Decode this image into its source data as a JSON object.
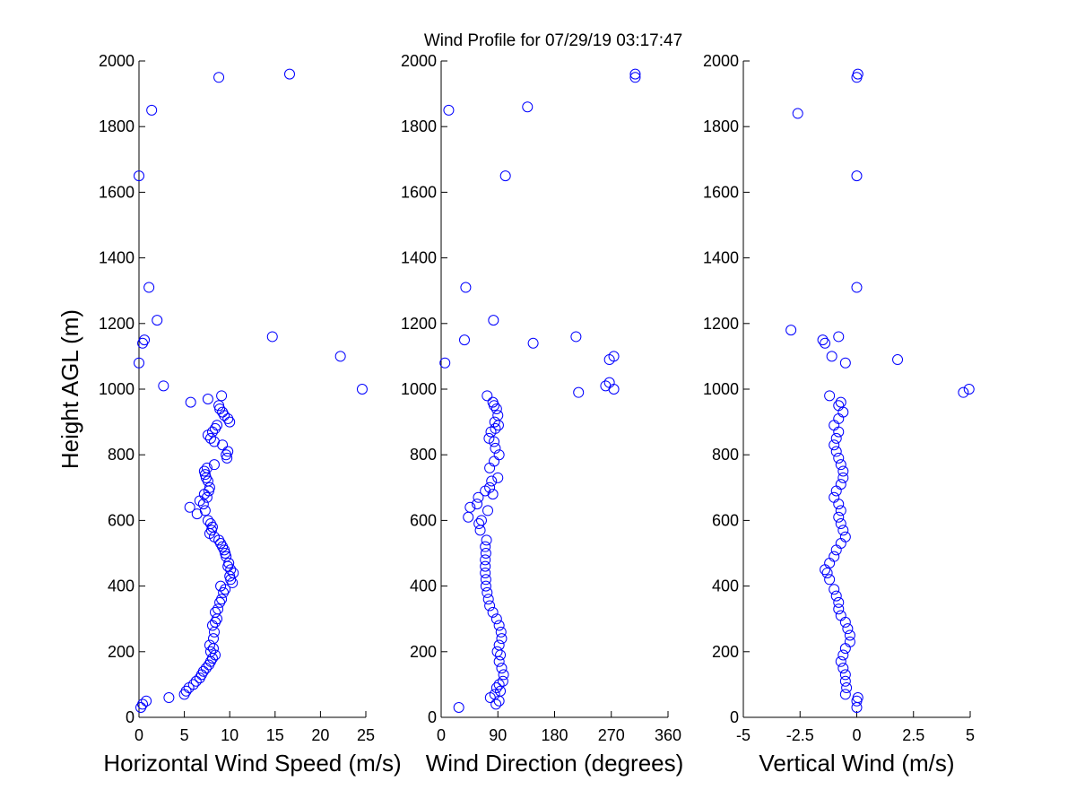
{
  "figure_title": "Wind Profile for  07/29/19 03:17:47",
  "chart_data": [
    {
      "type": "scatter",
      "title": "Wind Profile for  07/29/19 03:17:47",
      "xlabel": "Horizontal Wind Speed (m/s)",
      "ylabel": "Height AGL (m)",
      "xlim": [
        0,
        25
      ],
      "ylim": [
        0,
        2000
      ],
      "xticks": [
        0,
        5,
        10,
        15,
        20,
        25
      ],
      "xtick_labels": [
        "0",
        "5",
        "10",
        "15",
        "20",
        "25"
      ],
      "yticks": [
        0,
        200,
        400,
        600,
        800,
        1000,
        1200,
        1400,
        1600,
        1800,
        2000
      ],
      "ytick_labels": [
        "0",
        "200",
        "400",
        "600",
        "800",
        "1000",
        "1200",
        "1400",
        "1600",
        "1800",
        "2000"
      ],
      "marker_color": "#0000ff",
      "points": [
        [
          0.2,
          30
        ],
        [
          0.4,
          40
        ],
        [
          0.8,
          50
        ],
        [
          3.3,
          60
        ],
        [
          5,
          70
        ],
        [
          5.2,
          80
        ],
        [
          5.5,
          90
        ],
        [
          6,
          100
        ],
        [
          6.3,
          110
        ],
        [
          6.7,
          120
        ],
        [
          6.9,
          130
        ],
        [
          7.1,
          140
        ],
        [
          7.4,
          150
        ],
        [
          7.7,
          160
        ],
        [
          7.9,
          170
        ],
        [
          8.1,
          180
        ],
        [
          8.4,
          190
        ],
        [
          7.9,
          200
        ],
        [
          8.2,
          210
        ],
        [
          7.8,
          220
        ],
        [
          8.2,
          240
        ],
        [
          8.3,
          260
        ],
        [
          8.1,
          280
        ],
        [
          8.4,
          290
        ],
        [
          8.6,
          300
        ],
        [
          8.4,
          320
        ],
        [
          8.7,
          330
        ],
        [
          8.9,
          350
        ],
        [
          9.1,
          360
        ],
        [
          9.3,
          380
        ],
        [
          9.5,
          390
        ],
        [
          9,
          400
        ],
        [
          10.3,
          410
        ],
        [
          10.1,
          420
        ],
        [
          10,
          430
        ],
        [
          10.4,
          440
        ],
        [
          10.1,
          450
        ],
        [
          9.8,
          460
        ],
        [
          9.9,
          470
        ],
        [
          9.6,
          490
        ],
        [
          9.5,
          500
        ],
        [
          9.4,
          510
        ],
        [
          9.2,
          520
        ],
        [
          9,
          530
        ],
        [
          8.8,
          540
        ],
        [
          8.3,
          550
        ],
        [
          7.8,
          560
        ],
        [
          8,
          570
        ],
        [
          8.1,
          580
        ],
        [
          7.9,
          590
        ],
        [
          7.6,
          600
        ],
        [
          6.4,
          620
        ],
        [
          7.3,
          630
        ],
        [
          5.6,
          640
        ],
        [
          7.1,
          650
        ],
        [
          6.7,
          660
        ],
        [
          7.5,
          670
        ],
        [
          7.2,
          680
        ],
        [
          7.7,
          690
        ],
        [
          7.8,
          700
        ],
        [
          7.6,
          720
        ],
        [
          7.4,
          730
        ],
        [
          7.3,
          740
        ],
        [
          7.2,
          750
        ],
        [
          7.5,
          760
        ],
        [
          8.3,
          770
        ],
        [
          9.7,
          790
        ],
        [
          9.6,
          800
        ],
        [
          9.8,
          810
        ],
        [
          9.2,
          830
        ],
        [
          8.3,
          840
        ],
        [
          7.9,
          850
        ],
        [
          7.6,
          860
        ],
        [
          8.1,
          870
        ],
        [
          8.4,
          880
        ],
        [
          8.6,
          890
        ],
        [
          10,
          900
        ],
        [
          9.8,
          910
        ],
        [
          9.4,
          920
        ],
        [
          9.2,
          930
        ],
        [
          8.9,
          940
        ],
        [
          8.8,
          950
        ],
        [
          5.7,
          960
        ],
        [
          7.6,
          970
        ],
        [
          9.1,
          980
        ],
        [
          2.7,
          1010
        ],
        [
          24.6,
          1000
        ],
        [
          0,
          1080
        ],
        [
          22.2,
          1100
        ],
        [
          0.4,
          1140
        ],
        [
          0.6,
          1150
        ],
        [
          14.7,
          1160
        ],
        [
          2,
          1210
        ],
        [
          1.1,
          1310
        ],
        [
          0,
          1650
        ],
        [
          1.4,
          1850
        ],
        [
          8.8,
          1950
        ],
        [
          16.6,
          1960
        ]
      ]
    },
    {
      "type": "scatter",
      "xlabel": "Wind Direction (degrees)",
      "ylabel": "",
      "xlim": [
        0,
        360
      ],
      "ylim": [
        0,
        2000
      ],
      "xticks": [
        0,
        90,
        180,
        270,
        360
      ],
      "xtick_labels": [
        "0",
        "90",
        "180",
        "270",
        "360"
      ],
      "yticks": [
        0,
        200,
        400,
        600,
        800,
        1000,
        1200,
        1400,
        1600,
        1800,
        2000
      ],
      "ytick_labels": [
        "0",
        "200",
        "400",
        "600",
        "800",
        "1000",
        "1200",
        "1400",
        "1600",
        "1800",
        "2000"
      ],
      "marker_color": "#0000ff",
      "points": [
        [
          28,
          30
        ],
        [
          87,
          40
        ],
        [
          92,
          50
        ],
        [
          78,
          60
        ],
        [
          85,
          70
        ],
        [
          94,
          80
        ],
        [
          88,
          90
        ],
        [
          92,
          100
        ],
        [
          98,
          110
        ],
        [
          99,
          130
        ],
        [
          96,
          150
        ],
        [
          92,
          170
        ],
        [
          94,
          190
        ],
        [
          89,
          200
        ],
        [
          92,
          220
        ],
        [
          96,
          240
        ],
        [
          95,
          260
        ],
        [
          92,
          280
        ],
        [
          88,
          300
        ],
        [
          82,
          320
        ],
        [
          77,
          340
        ],
        [
          75,
          360
        ],
        [
          73,
          380
        ],
        [
          71,
          400
        ],
        [
          71,
          420
        ],
        [
          70,
          440
        ],
        [
          70,
          460
        ],
        [
          70,
          480
        ],
        [
          71,
          500
        ],
        [
          70,
          520
        ],
        [
          72,
          540
        ],
        [
          62,
          570
        ],
        [
          60,
          590
        ],
        [
          64,
          600
        ],
        [
          43,
          610
        ],
        [
          46,
          640
        ],
        [
          57,
          650
        ],
        [
          74,
          630
        ],
        [
          59,
          670
        ],
        [
          70,
          690
        ],
        [
          82,
          680
        ],
        [
          77,
          700
        ],
        [
          80,
          720
        ],
        [
          90,
          730
        ],
        [
          77,
          760
        ],
        [
          84,
          780
        ],
        [
          92,
          800
        ],
        [
          86,
          820
        ],
        [
          84,
          840
        ],
        [
          76,
          850
        ],
        [
          79,
          870
        ],
        [
          86,
          880
        ],
        [
          91,
          890
        ],
        [
          85,
          900
        ],
        [
          90,
          920
        ],
        [
          88,
          940
        ],
        [
          84,
          950
        ],
        [
          82,
          960
        ],
        [
          73,
          980
        ],
        [
          6,
          1080
        ],
        [
          37,
          1150
        ],
        [
          39,
          1310
        ],
        [
          83,
          1210
        ],
        [
          146,
          1140
        ],
        [
          214,
          1160
        ],
        [
          218,
          990
        ],
        [
          261,
          1010
        ],
        [
          267,
          1020
        ],
        [
          267,
          1090
        ],
        [
          274,
          1100
        ],
        [
          274,
          1000
        ],
        [
          102,
          1650
        ],
        [
          12,
          1850
        ],
        [
          137,
          1860
        ],
        [
          308,
          1950
        ],
        [
          308,
          1960
        ]
      ]
    },
    {
      "type": "scatter",
      "xlabel": "Vertical Wind (m/s)",
      "ylabel": "",
      "xlim": [
        -5,
        5
      ],
      "ylim": [
        0,
        2000
      ],
      "xticks": [
        -5,
        -2.5,
        0,
        2.5,
        5
      ],
      "xtick_labels": [
        "-5",
        "-2.5",
        "0",
        "2.5",
        "5"
      ],
      "yticks": [
        0,
        200,
        400,
        600,
        800,
        1000,
        1200,
        1400,
        1600,
        1800,
        2000
      ],
      "ytick_labels": [
        "0",
        "200",
        "400",
        "600",
        "800",
        "1000",
        "1200",
        "1400",
        "1600",
        "1800",
        "2000"
      ],
      "marker_color": "#0000ff",
      "points": [
        [
          0,
          30
        ],
        [
          0,
          50
        ],
        [
          0.05,
          60
        ],
        [
          -0.5,
          70
        ],
        [
          -0.45,
          90
        ],
        [
          -0.5,
          110
        ],
        [
          -0.5,
          130
        ],
        [
          -0.6,
          150
        ],
        [
          -0.7,
          170
        ],
        [
          -0.6,
          190
        ],
        [
          -0.5,
          210
        ],
        [
          -0.3,
          230
        ],
        [
          -0.3,
          250
        ],
        [
          -0.4,
          270
        ],
        [
          -0.5,
          290
        ],
        [
          -0.7,
          310
        ],
        [
          -0.8,
          330
        ],
        [
          -0.8,
          350
        ],
        [
          -0.9,
          370
        ],
        [
          -1,
          390
        ],
        [
          -1.2,
          420
        ],
        [
          -1.3,
          440
        ],
        [
          -1.4,
          450
        ],
        [
          -1.2,
          470
        ],
        [
          -1,
          490
        ],
        [
          -0.9,
          510
        ],
        [
          -0.7,
          530
        ],
        [
          -0.5,
          550
        ],
        [
          -0.6,
          570
        ],
        [
          -0.7,
          590
        ],
        [
          -0.8,
          610
        ],
        [
          -0.7,
          630
        ],
        [
          -0.8,
          650
        ],
        [
          -1,
          670
        ],
        [
          -0.9,
          690
        ],
        [
          -0.7,
          710
        ],
        [
          -0.6,
          730
        ],
        [
          -0.6,
          750
        ],
        [
          -0.7,
          770
        ],
        [
          -0.8,
          790
        ],
        [
          -0.9,
          810
        ],
        [
          -1,
          830
        ],
        [
          -0.9,
          850
        ],
        [
          -0.8,
          870
        ],
        [
          -1,
          890
        ],
        [
          -0.8,
          910
        ],
        [
          -0.6,
          930
        ],
        [
          -0.8,
          950
        ],
        [
          -0.7,
          960
        ],
        [
          -1.2,
          980
        ],
        [
          4.7,
          990
        ],
        [
          4.95,
          1000
        ],
        [
          -0.5,
          1080
        ],
        [
          1.8,
          1090
        ],
        [
          -1.1,
          1100
        ],
        [
          -1.4,
          1140
        ],
        [
          -1.5,
          1150
        ],
        [
          -0.8,
          1160
        ],
        [
          -2.9,
          1180
        ],
        [
          0,
          1310
        ],
        [
          0,
          1650
        ],
        [
          -2.6,
          1840
        ],
        [
          0,
          1950
        ],
        [
          0.05,
          1960
        ]
      ]
    }
  ]
}
